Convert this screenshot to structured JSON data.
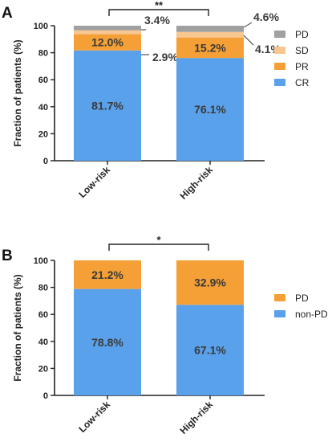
{
  "chart_data": [
    {
      "panel": "A",
      "type": "bar",
      "stacked": true,
      "categories": [
        "Low-risk",
        "High-risk"
      ],
      "ylabel": "Fraction of patients (%)",
      "ylim": [
        0,
        100
      ],
      "yticks": [
        0,
        20,
        40,
        60,
        80,
        100
      ],
      "series": [
        {
          "name": "CR",
          "values": [
            81.7,
            76.1
          ],
          "labels": [
            "81.7%",
            "76.1%"
          ],
          "color": "#5aa1eb"
        },
        {
          "name": "PR",
          "values": [
            12.0,
            15.2
          ],
          "labels": [
            "12.0%",
            "15.2%"
          ],
          "color": "#f5a036"
        },
        {
          "name": "SD",
          "values": [
            2.9,
            4.1
          ],
          "labels": [
            "2.9%",
            "4.1%"
          ],
          "color": "#f8c690"
        },
        {
          "name": "PD",
          "values": [
            3.4,
            4.6
          ],
          "labels": [
            "3.4%",
            "4.6%"
          ],
          "color": "#a0a0a0"
        }
      ],
      "legend_order": [
        "PD",
        "SD",
        "PR",
        "CR"
      ],
      "legend_position": "right",
      "significance": "**"
    },
    {
      "panel": "B",
      "type": "bar",
      "stacked": true,
      "categories": [
        "Low-risk",
        "High-risk"
      ],
      "ylabel": "Fraction of patients (%)",
      "ylim": [
        0,
        100
      ],
      "yticks": [
        0,
        20,
        40,
        60,
        80,
        100
      ],
      "series": [
        {
          "name": "non-PD",
          "values": [
            78.8,
            67.1
          ],
          "labels": [
            "78.8%",
            "67.1%"
          ],
          "color": "#5aa1eb"
        },
        {
          "name": "PD",
          "values": [
            21.2,
            32.9
          ],
          "labels": [
            "21.2%",
            "32.9%"
          ],
          "color": "#f5a036"
        }
      ],
      "legend_order": [
        "PD",
        "non-PD"
      ],
      "legend_position": "right",
      "significance": "*"
    }
  ]
}
